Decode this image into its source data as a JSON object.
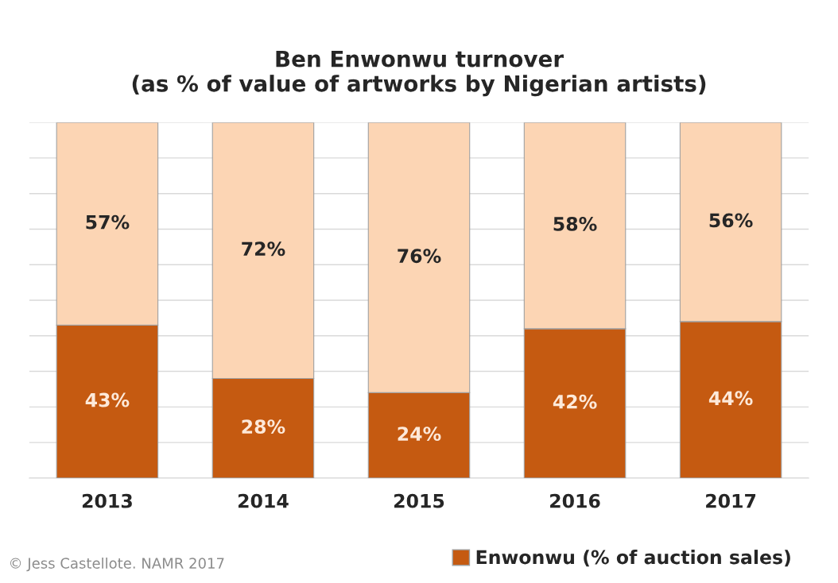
{
  "chart_data": {
    "type": "bar",
    "title": "Ben Enwonwu turnover\n(as % of value of artworks by Nigerian artists)",
    "categories": [
      "2013",
      "2014",
      "2015",
      "2016",
      "2017"
    ],
    "stacked": true,
    "series": [
      {
        "name": "Enwonwu (% of auction sales)",
        "color": "#c55a11",
        "values": [
          43,
          28,
          24,
          42,
          44
        ],
        "value_labels": [
          "43%",
          "28%",
          "24%",
          "42%",
          "44%"
        ]
      },
      {
        "color": "#fcd5b4",
        "values": [
          57,
          72,
          76,
          58,
          56
        ],
        "value_labels": [
          "57%",
          "72%",
          "76%",
          "58%",
          "56%"
        ]
      }
    ],
    "ylim": [
      0,
      100
    ],
    "yticks": [
      {
        "value": 0,
        "label": null
      },
      {
        "value": 10,
        "label": null
      },
      {
        "value": 20,
        "label": null
      },
      {
        "value": 30,
        "label": null
      },
      {
        "value": 40,
        "label": null
      },
      {
        "value": 50,
        "label": null
      },
      {
        "value": 60,
        "label": null
      },
      {
        "value": 70,
        "label": null
      },
      {
        "value": 80,
        "label": null
      },
      {
        "value": 90,
        "label": null
      },
      {
        "value": 100,
        "label": null
      }
    ],
    "tick_labels": "x",
    "grid": "y",
    "legend": "bottom right",
    "annotations": [
      "© Jess Castellote. NAMR 2017"
    ]
  }
}
